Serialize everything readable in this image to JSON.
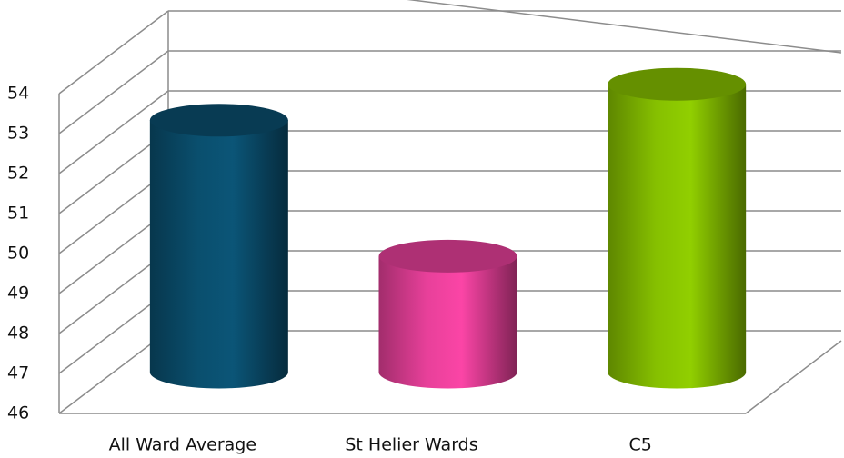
{
  "chart_data": {
    "type": "bar",
    "categories": [
      "All Ward Average",
      "St Helier Wards",
      "C5"
    ],
    "values": [
      52.3,
      48.9,
      53.2
    ],
    "colors": [
      "#0a4f6e",
      "#e8409a",
      "#86c000"
    ],
    "ylim": [
      46,
      54
    ],
    "yticks": [
      46,
      47,
      48,
      49,
      50,
      51,
      52,
      53,
      54
    ],
    "grid": true
  }
}
